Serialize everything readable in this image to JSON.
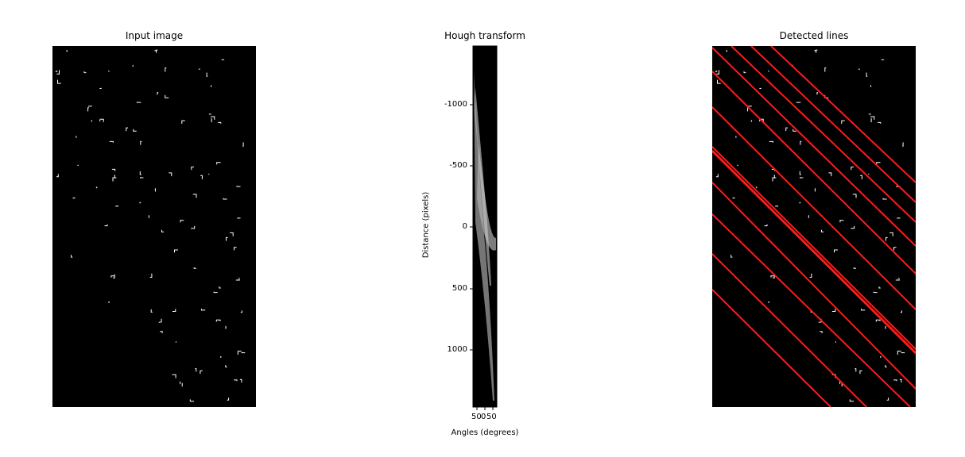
{
  "chart_data": [
    {
      "type": "image",
      "title": "Input image",
      "colormap": "gray",
      "background": "#000000",
      "foreground": "#ffffff"
    },
    {
      "type": "heatmap",
      "title": "Hough transform",
      "xlabel": "Angles (degrees)",
      "ylabel": "Distance (pixels)",
      "xtick_labels": [
        "50",
        "0",
        "50"
      ],
      "yticks": [
        -1000,
        -500,
        0,
        500,
        1000
      ],
      "ylim": [
        1450,
        -1450
      ],
      "colormap": "gray"
    },
    {
      "type": "image",
      "title": "Detected lines",
      "colormap": "gray",
      "line_color": "#ff0000",
      "lines_detected": 12
    }
  ]
}
